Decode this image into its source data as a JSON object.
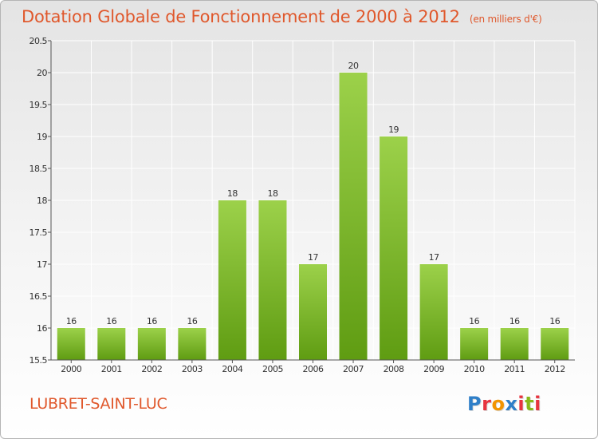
{
  "title": "Dotation Globale de Fonctionnement de 2000 à 2012",
  "subtitle": "(en milliers d'€)",
  "commune": "LUBRET-SAINT-LUC",
  "logo": {
    "text": "Proxiti",
    "letter_colors": [
      "#2f7fc8",
      "#e7343f",
      "#f29400",
      "#2f7fc8",
      "#e7343f",
      "#89b818",
      "#e7343f"
    ]
  },
  "chart_data": {
    "type": "bar",
    "title": "Dotation Globale de Fonctionnement de 2000 à 2012",
    "subtitle": "(en milliers d'€)",
    "xlabel": "",
    "ylabel": "",
    "categories": [
      "2000",
      "2001",
      "2002",
      "2003",
      "2004",
      "2005",
      "2006",
      "2007",
      "2008",
      "2009",
      "2010",
      "2011",
      "2012"
    ],
    "values": [
      16,
      16,
      16,
      16,
      18,
      18,
      17,
      20,
      19,
      17,
      16,
      16,
      16
    ],
    "data_labels": [
      "16",
      "16",
      "16",
      "16",
      "18",
      "18",
      "17",
      "20",
      "19",
      "17",
      "16",
      "16",
      "16"
    ],
    "ylim": [
      15.5,
      20.5
    ],
    "yticks": [
      15.5,
      16,
      16.5,
      17,
      17.5,
      18,
      18.5,
      19,
      19.5,
      20,
      20.5
    ],
    "ytick_labels": [
      "15.5",
      "16",
      "16.5",
      "17",
      "17.5",
      "18",
      "18.5",
      "19",
      "19.5",
      "20",
      "20.5"
    ],
    "grid": true,
    "legend": "none",
    "colors": {
      "bar_top": "#9cd14a",
      "bar_bottom": "#5f9c12",
      "text": "#333333",
      "axis": "#555555",
      "grid": "#ffffff"
    }
  }
}
